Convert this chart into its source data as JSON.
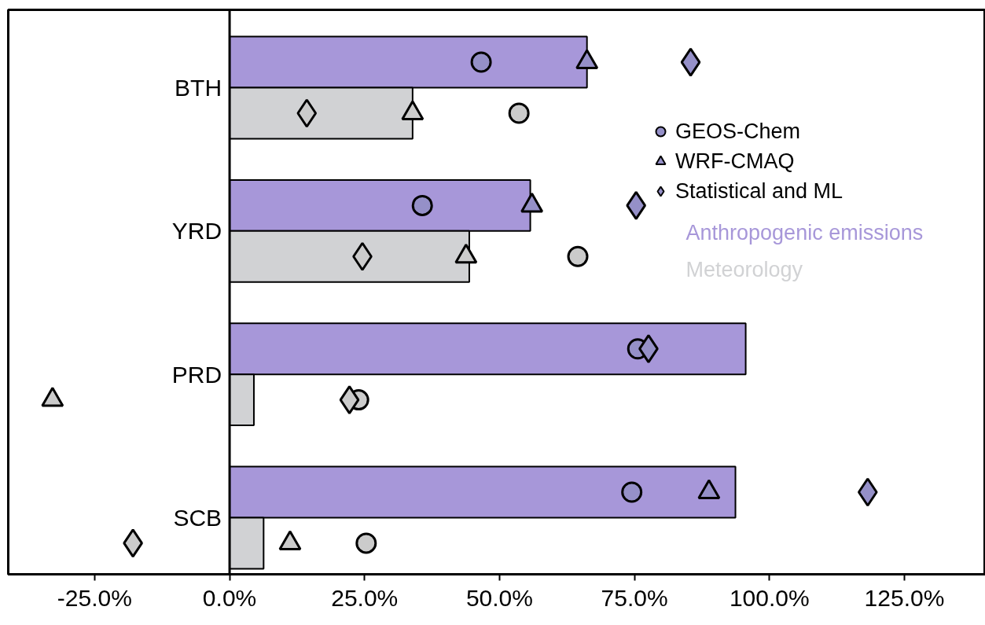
{
  "chart_data": {
    "type": "bar",
    "orientation": "horizontal",
    "categories": [
      "BTH",
      "YRD",
      "PRD",
      "SCB"
    ],
    "xlim": [
      -41,
      140
    ],
    "xticks": [
      {
        "value": -25,
        "label": "-25.0%"
      },
      {
        "value": 0,
        "label": "0.0%"
      },
      {
        "value": 25,
        "label": "25.0%"
      },
      {
        "value": 50,
        "label": "50.0%"
      },
      {
        "value": 75,
        "label": "75.0%"
      },
      {
        "value": 100,
        "label": "100.0%"
      },
      {
        "value": 125,
        "label": "125.0%"
      }
    ],
    "grid": false,
    "legend": "right",
    "series": [
      {
        "name": "Anthropogenic emissions",
        "color": "#a797d9",
        "values": [
          66.2,
          55.7,
          95.6,
          93.7
        ]
      },
      {
        "name": "Meteorology",
        "color": "#d1d2d4",
        "values": [
          33.9,
          44.4,
          4.5,
          6.3
        ]
      },
      {
        "name": "GEOS-Chem",
        "type": "scatter",
        "marker": "circle",
        "color": "#9590c8",
        "values": [
          46.6,
          35.7,
          75.6,
          74.5
        ]
      },
      {
        "type": "scatter",
        "marker": "circle",
        "color": "#cbcbcb",
        "values": [
          53.6,
          64.5,
          23.9,
          25.3
        ]
      },
      {
        "name": "WRF-CMAQ",
        "type": "scatter",
        "marker": "triangle",
        "color": "#9590c8",
        "values": [
          66.2,
          56.0,
          null,
          88.8
        ]
      },
      {
        "type": "scatter",
        "marker": "triangle",
        "color": "#cbcbcb",
        "values": [
          33.9,
          43.8,
          -32.8,
          11.2
        ]
      },
      {
        "name": "Statistical and ML",
        "type": "scatter",
        "marker": "diamond",
        "color": "#9590c8",
        "values": [
          85.4,
          75.3,
          77.6,
          118.2
        ]
      },
      {
        "type": "scatter",
        "marker": "diamond",
        "color": "#cbcbcb",
        "values": [
          14.3,
          24.6,
          22.2,
          -17.9
        ]
      }
    ]
  }
}
